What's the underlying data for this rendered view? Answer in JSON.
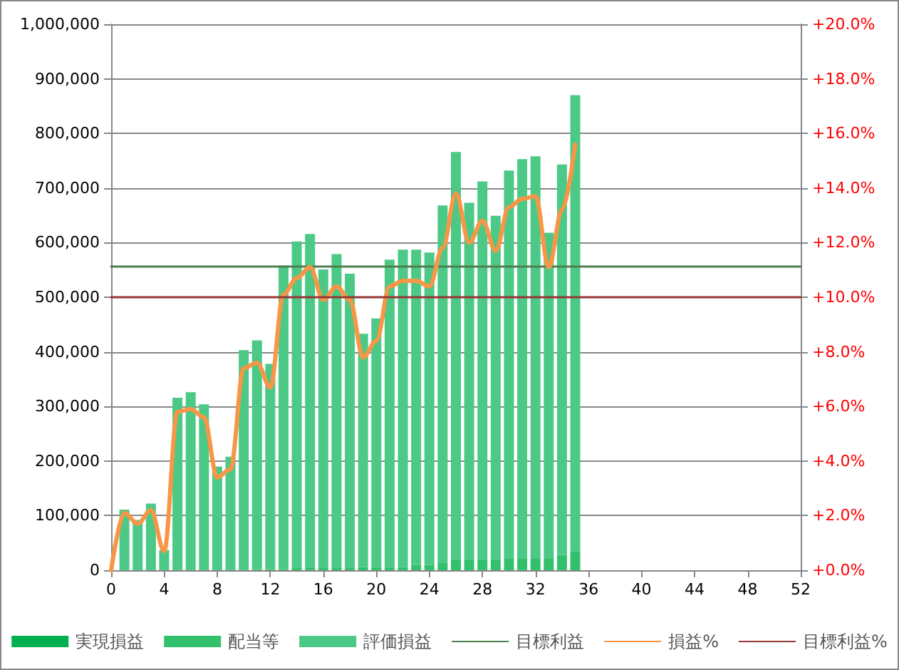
{
  "chart_data": {
    "type": "bar",
    "stacked": true,
    "x": [
      1,
      2,
      3,
      4,
      5,
      6,
      7,
      8,
      9,
      10,
      11,
      12,
      13,
      14,
      15,
      16,
      17,
      18,
      19,
      20,
      21,
      22,
      23,
      24,
      25,
      26,
      27,
      28,
      29,
      30,
      31,
      32,
      33,
      34,
      35
    ],
    "series": [
      {
        "name": "実現損益",
        "color": "#00b050",
        "values": [
          0,
          0,
          0,
          0,
          0,
          0,
          0,
          0,
          0,
          0,
          0,
          0,
          0,
          0,
          0,
          0,
          0,
          0,
          0,
          0,
          0,
          0,
          0,
          0,
          0,
          0,
          0,
          0,
          0,
          0,
          0,
          0,
          0,
          0,
          0
        ]
      },
      {
        "name": "配当等",
        "color": "#33c06c",
        "values": [
          0,
          0,
          0,
          0,
          0,
          0,
          0,
          0,
          0,
          0,
          2000,
          2000,
          2000,
          4000,
          4000,
          4000,
          4000,
          4000,
          6000,
          6000,
          6000,
          6000,
          10000,
          10000,
          13000,
          20000,
          20000,
          20000,
          20000,
          22000,
          22000,
          22000,
          22000,
          28000,
          34000
        ]
      },
      {
        "name": "評価損益",
        "color": "#4cc986",
        "values": [
          111000,
          92000,
          122000,
          37000,
          316000,
          326000,
          304000,
          190000,
          208000,
          403000,
          419000,
          376000,
          556000,
          598000,
          612000,
          547000,
          575000,
          539000,
          427000,
          455000,
          563000,
          581000,
          577000,
          572000,
          655000,
          746000,
          653000,
          692000,
          629000,
          710000,
          731000,
          736000,
          596000,
          715000,
          836000
        ]
      },
      {
        "name": "目標利益",
        "type": "line",
        "color": "#4f7f4f",
        "x": [
          0,
          52
        ],
        "values": [
          556000,
          556000
        ]
      },
      {
        "name": "損益%",
        "type": "line",
        "axis": "y2",
        "color": "#f79646",
        "x": [
          0,
          1,
          2,
          3,
          4,
          5,
          6,
          7,
          8,
          9,
          10,
          11,
          12,
          13,
          14,
          15,
          16,
          17,
          18,
          19,
          20,
          21,
          22,
          23,
          24,
          25,
          26,
          27,
          28,
          29,
          30,
          31,
          32,
          33,
          34,
          35
        ],
        "values": [
          0.0,
          2.1,
          1.7,
          2.2,
          0.7,
          5.8,
          5.9,
          5.6,
          3.4,
          3.7,
          7.4,
          7.6,
          6.7,
          10.1,
          10.7,
          11.1,
          9.9,
          10.4,
          9.9,
          7.8,
          8.4,
          10.4,
          10.6,
          10.6,
          10.4,
          11.8,
          13.8,
          12.0,
          12.8,
          11.7,
          13.3,
          13.6,
          13.7,
          11.1,
          13.2,
          15.6
        ]
      },
      {
        "name": "目標利益%",
        "type": "line",
        "axis": "y2",
        "color": "#953735",
        "x": [
          0,
          52
        ],
        "values": [
          10,
          10
        ]
      }
    ],
    "xlim": [
      0,
      52
    ],
    "xticks": [
      0,
      4,
      8,
      12,
      16,
      20,
      24,
      28,
      32,
      36,
      40,
      44,
      48,
      52
    ],
    "ylim": [
      0,
      1000000
    ],
    "yticks": [
      {
        "value": 0,
        "label": "0"
      },
      {
        "value": 100000,
        "label": "100,000"
      },
      {
        "value": 200000,
        "label": "200,000"
      },
      {
        "value": 300000,
        "label": "300,000"
      },
      {
        "value": 400000,
        "label": "400,000"
      },
      {
        "value": 500000,
        "label": "500,000"
      },
      {
        "value": 600000,
        "label": "600,000"
      },
      {
        "value": 700000,
        "label": "700,000"
      },
      {
        "value": 800000,
        "label": "800,000"
      },
      {
        "value": 900000,
        "label": "900,000"
      },
      {
        "value": 1000000,
        "label": "1,000,000"
      }
    ],
    "y2lim": [
      0,
      20
    ],
    "y2ticks": [
      {
        "value": 0,
        "label": "+0.0%"
      },
      {
        "value": 2,
        "label": "+2.0%"
      },
      {
        "value": 4,
        "label": "+4.0%"
      },
      {
        "value": 6,
        "label": "+6.0%"
      },
      {
        "value": 8,
        "label": "+8.0%"
      },
      {
        "value": 10,
        "label": "+10.0%"
      },
      {
        "value": 12,
        "label": "+12.0%"
      },
      {
        "value": 14,
        "label": "+14.0%"
      },
      {
        "value": 16,
        "label": "+16.0%"
      },
      {
        "value": 18,
        "label": "+18.0%"
      },
      {
        "value": 20,
        "label": "+20.0%"
      }
    ],
    "grid": "y",
    "legend": "bottom",
    "marker": "none"
  }
}
